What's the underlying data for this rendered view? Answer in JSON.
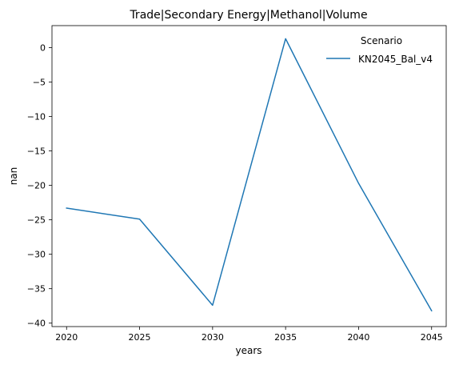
{
  "chart_data": {
    "type": "line",
    "title": "Trade|Secondary Energy|Methanol|Volume",
    "xlabel": "years",
    "ylabel": "nan",
    "x": [
      2020,
      2025,
      2030,
      2035,
      2040,
      2045
    ],
    "xlim": [
      2019,
      2046
    ],
    "ylim": [
      -40.5,
      3.2
    ],
    "x_ticks": [
      2020,
      2025,
      2030,
      2035,
      2040,
      2045
    ],
    "y_ticks": [
      0,
      -5,
      -10,
      -15,
      -20,
      -25,
      -30,
      -35,
      -40
    ],
    "grid": false,
    "legend": {
      "title": "Scenario",
      "placement": "top-right"
    },
    "series": [
      {
        "name": "KN2045_Bal_v4",
        "color": "#1f77b4",
        "values": [
          -23.3,
          -24.9,
          -37.4,
          1.3,
          -19.7,
          -38.2
        ]
      }
    ]
  }
}
